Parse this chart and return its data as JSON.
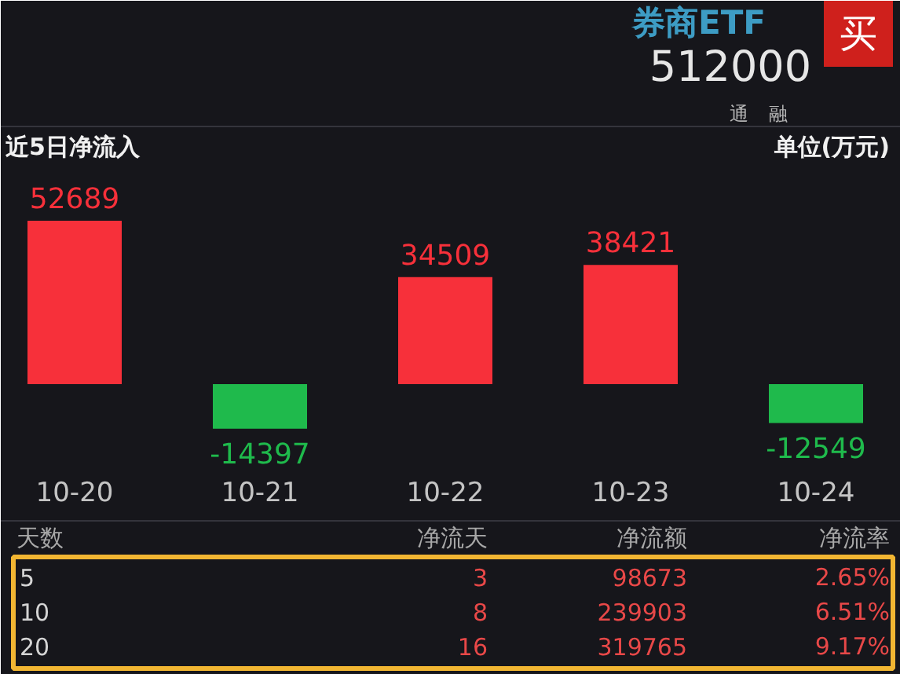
{
  "chart_data": {
    "type": "bar",
    "title": "近5日净流入",
    "categories": [
      "10-20",
      "10-21",
      "10-22",
      "10-23",
      "10-24"
    ],
    "values": [
      52689,
      -14397,
      34509,
      38421,
      -12549
    ],
    "colors": [
      "#f7303a",
      "#1fba4c",
      "#f7303a",
      "#f7303a",
      "#1fba4c"
    ],
    "data_labels": true,
    "tick_labels": "x",
    "annotations": [
      "单位(万元)",
      "券商ETF",
      "512000",
      "买",
      "通",
      "融",
      "天数",
      "净流天",
      "净流额",
      "净流率",
      "5",
      "3",
      "98673",
      "2.65%",
      "10",
      "8",
      "239903",
      "6.51%",
      "20",
      "16",
      "319765",
      "9.17%"
    ]
  }
}
